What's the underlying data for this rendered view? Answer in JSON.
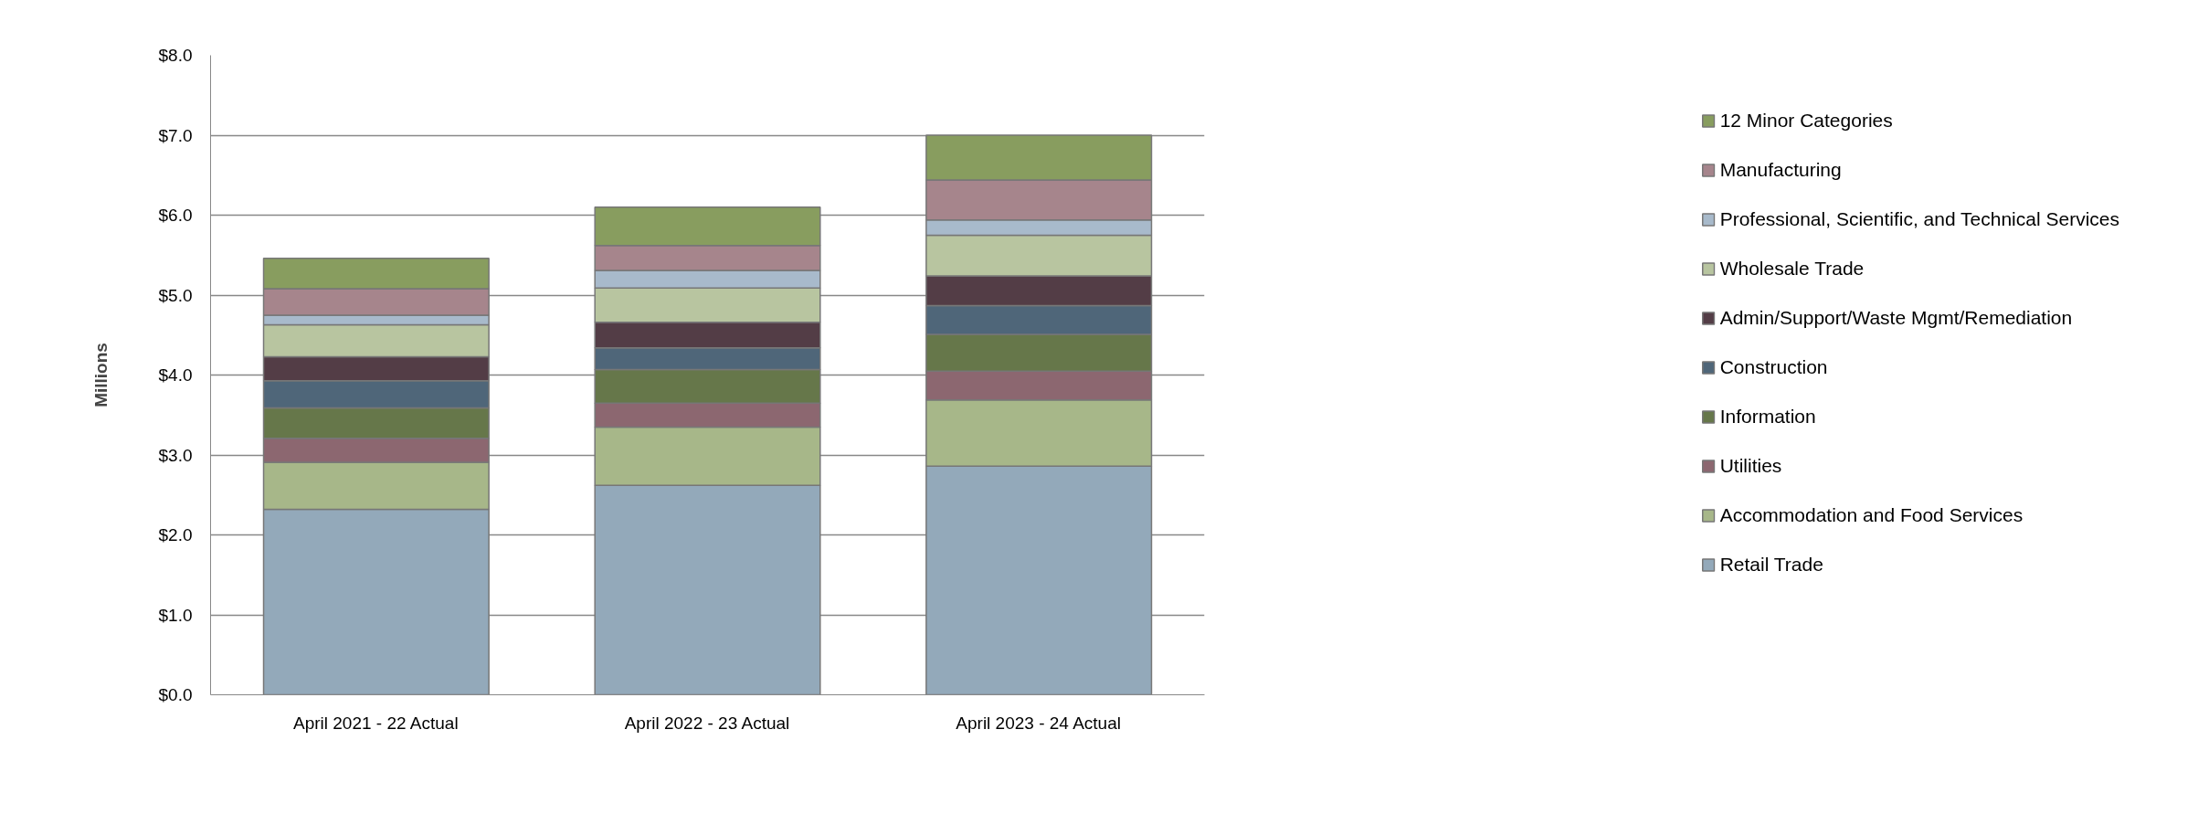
{
  "chart_data": {
    "type": "bar",
    "stacked": true,
    "ylabel": "Millions",
    "categories": [
      "April 2021 - 22 Actual",
      "April 2022 - 23 Actual",
      "April 2023 - 24 Actual"
    ],
    "series": [
      {
        "name": "Retail Trade",
        "color": "#93a9ba",
        "values": [
          2.32,
          2.62,
          2.86
        ]
      },
      {
        "name": "Accommodation and Food Services",
        "color": "#a7b789",
        "values": [
          0.59,
          0.73,
          0.83
        ]
      },
      {
        "name": "Utilities",
        "color": "#8c6770",
        "values": [
          0.3,
          0.3,
          0.36
        ]
      },
      {
        "name": "Information",
        "color": "#66774a",
        "values": [
          0.38,
          0.42,
          0.46
        ]
      },
      {
        "name": "Construction",
        "color": "#4f6679",
        "values": [
          0.34,
          0.27,
          0.36
        ]
      },
      {
        "name": "Admin/Support/Waste Mgmt/Remediation",
        "color": "#533d46",
        "values": [
          0.3,
          0.32,
          0.37
        ]
      },
      {
        "name": "Wholesale Trade",
        "color": "#b8c5a0",
        "values": [
          0.4,
          0.43,
          0.51
        ]
      },
      {
        "name": "Professional, Scientific, and Technical Services",
        "color": "#a8bacb",
        "values": [
          0.12,
          0.22,
          0.19
        ]
      },
      {
        "name": "Manufacturing",
        "color": "#a6858c",
        "values": [
          0.33,
          0.31,
          0.5
        ]
      },
      {
        "name": "12 Minor Categories",
        "color": "#889d5f",
        "values": [
          0.38,
          0.48,
          0.56
        ]
      }
    ],
    "ylim": [
      0,
      8
    ],
    "yticks": [
      {
        "value": 0,
        "label": "$0.0"
      },
      {
        "value": 1,
        "label": "$1.0"
      },
      {
        "value": 2,
        "label": "$2.0"
      },
      {
        "value": 3,
        "label": "$3.0"
      },
      {
        "value": 4,
        "label": "$4.0"
      },
      {
        "value": 5,
        "label": "$5.0"
      },
      {
        "value": 6,
        "label": "$6.0"
      },
      {
        "value": 7,
        "label": "$7.0"
      },
      {
        "value": 8,
        "label": "$8.0"
      }
    ],
    "grid": "y",
    "legend": "right"
  }
}
